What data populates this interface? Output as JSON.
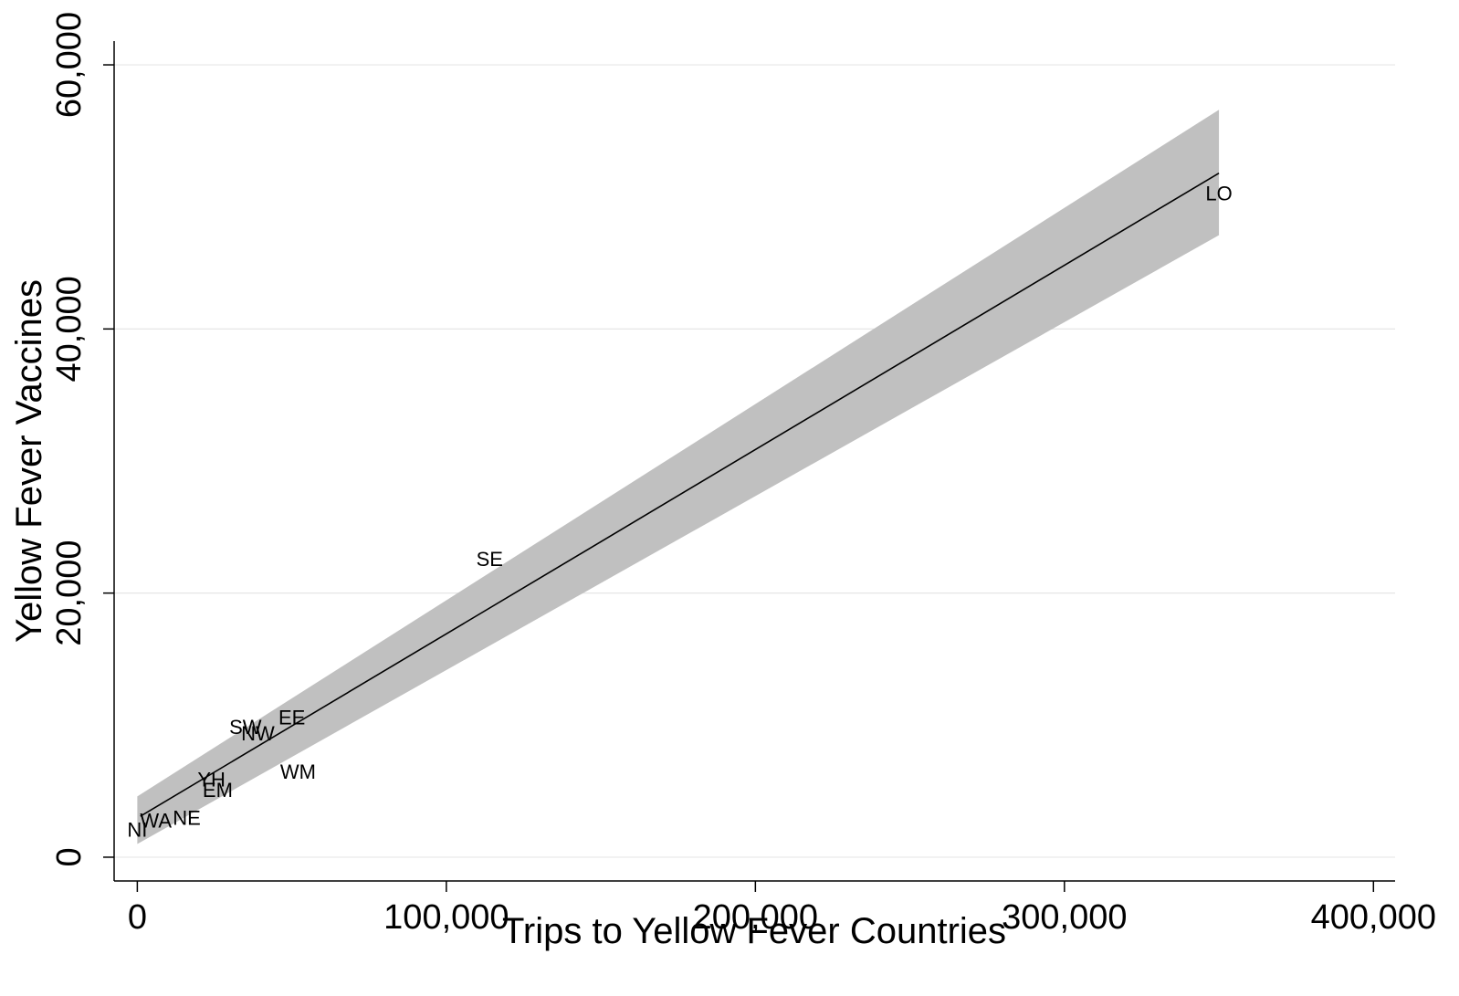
{
  "chart_data": {
    "type": "scatter",
    "title": "",
    "xlabel": "Trips to Yellow Fever Countries",
    "ylabel": "Yellow Fever Vaccines",
    "xlim": [
      -7500,
      407000
    ],
    "ylim": [
      -1800,
      61800
    ],
    "xticks": [
      0,
      100000,
      200000,
      300000,
      400000
    ],
    "xtick_labels": [
      "0",
      "100,000",
      "200,000",
      "300,000",
      "400,000"
    ],
    "yticks": [
      0,
      20000,
      40000,
      60000
    ],
    "ytick_labels": [
      "0",
      "20,000",
      "40,000",
      "60,000"
    ],
    "grid": "horizontal",
    "points": [
      {
        "label": "LO",
        "x": 350000,
        "y": 50300
      },
      {
        "label": "SE",
        "x": 114000,
        "y": 22600
      },
      {
        "label": "EE",
        "x": 50000,
        "y": 10600
      },
      {
        "label": "SW",
        "x": 35000,
        "y": 9900
      },
      {
        "label": "NW",
        "x": 39000,
        "y": 9400
      },
      {
        "label": "WM",
        "x": 52000,
        "y": 6500
      },
      {
        "label": "YH",
        "x": 24000,
        "y": 5900
      },
      {
        "label": "EM",
        "x": 26000,
        "y": 5100
      },
      {
        "label": "NE",
        "x": 16000,
        "y": 3000
      },
      {
        "label": "WA",
        "x": 6000,
        "y": 2800
      },
      {
        "label": "NI",
        "x": 0,
        "y": 2100
      }
    ],
    "fit_line": {
      "x": [
        1000,
        350000
      ],
      "y": [
        3100,
        51800
      ]
    },
    "confidence_band": {
      "x": [
        0,
        350000
      ],
      "lower": [
        1000,
        47100
      ],
      "upper": [
        4600,
        56600
      ]
    },
    "colors": {
      "band": "#c0c0c0",
      "line": "#000000",
      "grid": "#e6e6e6",
      "axis": "#000000"
    }
  }
}
